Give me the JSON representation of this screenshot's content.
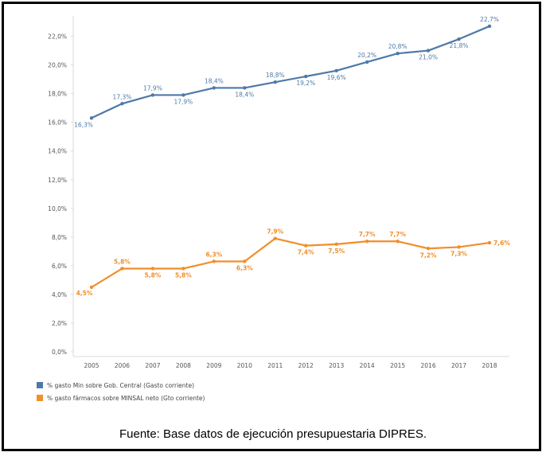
{
  "caption": "Fuente: Base datos de ejecución presupuestaria DIPRES.",
  "chart_data": {
    "type": "line",
    "title": "",
    "xlabel": "",
    "ylabel": "",
    "ylim": [
      0,
      23
    ],
    "categories": [
      "2005",
      "2006",
      "2007",
      "2008",
      "2009",
      "2010",
      "2011",
      "2012",
      "2013",
      "2014",
      "2015",
      "2016",
      "2017",
      "2018"
    ],
    "yticks": [
      "0,0%",
      "2,0%",
      "4,0%",
      "6,0%",
      "8,0%",
      "10,0%",
      "12,0%",
      "14,0%",
      "16,0%",
      "18,0%",
      "20,0%",
      "22,0%"
    ],
    "grid": false,
    "legend_position": "bottom-left",
    "series": [
      {
        "name": "% gasto Min sobre Gob. Central  (Gasto corriente)",
        "color": "#4e79a7",
        "values": [
          16.3,
          17.3,
          17.9,
          17.9,
          18.4,
          18.4,
          18.8,
          19.2,
          19.6,
          20.2,
          20.8,
          21.0,
          21.8,
          22.7
        ],
        "labels": [
          "16,3%",
          "17,3%",
          "17,9%",
          "17,9%",
          "18,4%",
          "18,4%",
          "18,8%",
          "19,2%",
          "19,6%",
          "20,2%",
          "20,8%",
          "21,0%",
          "21,8%",
          "22,7%"
        ]
      },
      {
        "name": "% gasto fármacos sobre MINSAL neto (Gto corriente)",
        "color": "#f28e2b",
        "values": [
          4.5,
          5.8,
          5.8,
          5.8,
          6.3,
          6.3,
          7.9,
          7.4,
          7.5,
          7.7,
          7.7,
          7.2,
          7.3,
          7.6
        ],
        "labels": [
          "4,5%",
          "5,8%",
          "5,8%",
          "5,8%",
          "6,3%",
          "6,3%",
          "7,9%",
          "7,4%",
          "7,5%",
          "7,7%",
          "7,7%",
          "7,2%",
          "7,3%",
          "7,6%"
        ]
      }
    ]
  }
}
